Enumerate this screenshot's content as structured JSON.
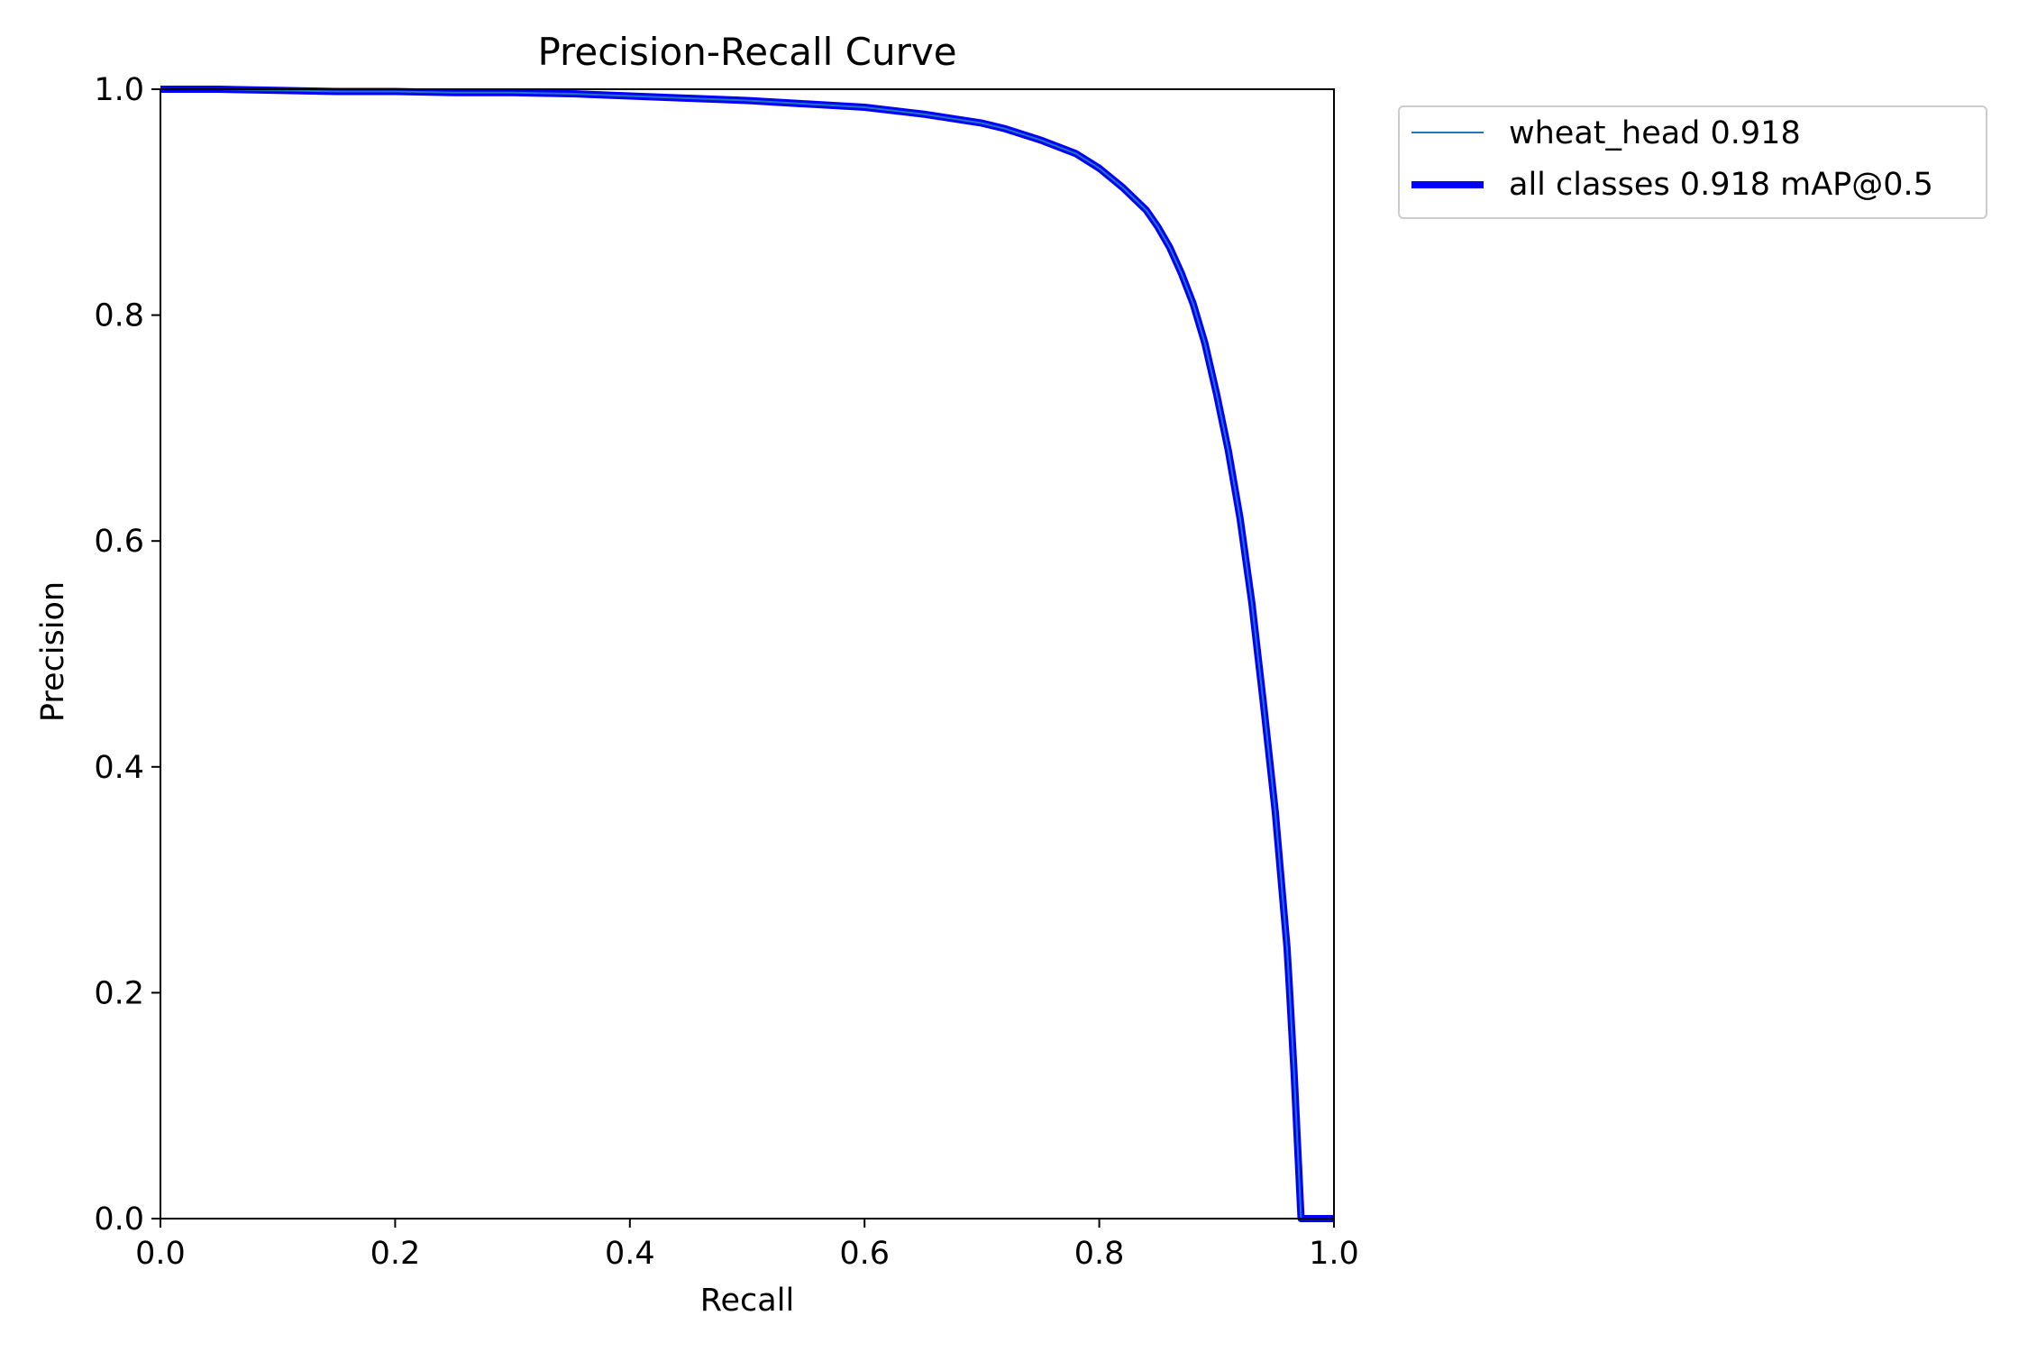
{
  "chart_data": {
    "type": "line",
    "title": "Precision-Recall Curve",
    "xlabel": "Recall",
    "ylabel": "Precision",
    "xlim": [
      0,
      1
    ],
    "ylim": [
      0,
      1
    ],
    "xticks": [
      "0.0",
      "0.2",
      "0.4",
      "0.6",
      "0.8",
      "1.0"
    ],
    "yticks": [
      "0.0",
      "0.2",
      "0.4",
      "0.6",
      "0.8",
      "1.0"
    ],
    "grid": false,
    "legend_position": "outside-top-right",
    "series": [
      {
        "name": "wheat_head 0.918",
        "color": "#1f77b4",
        "line": "thin",
        "x": [
          0.0,
          0.05,
          0.1,
          0.15,
          0.2,
          0.25,
          0.3,
          0.35,
          0.4,
          0.45,
          0.5,
          0.55,
          0.6,
          0.65,
          0.7,
          0.72,
          0.75,
          0.78,
          0.8,
          0.82,
          0.84,
          0.85,
          0.86,
          0.87,
          0.88,
          0.89,
          0.9,
          0.91,
          0.92,
          0.93,
          0.94,
          0.95,
          0.96,
          0.962,
          0.966,
          0.972,
          0.972,
          0.98,
          1.0
        ],
        "y": [
          1.0,
          1.0,
          0.999,
          0.998,
          0.998,
          0.997,
          0.997,
          0.996,
          0.994,
          0.992,
          0.99,
          0.987,
          0.984,
          0.978,
          0.97,
          0.965,
          0.955,
          0.943,
          0.93,
          0.913,
          0.893,
          0.878,
          0.86,
          0.837,
          0.81,
          0.775,
          0.73,
          0.68,
          0.62,
          0.545,
          0.455,
          0.36,
          0.24,
          0.205,
          0.13,
          0.0,
          0.0,
          0.0,
          0.0
        ]
      },
      {
        "name": "all classes 0.918 mAP@0.5",
        "color": "#0000ff",
        "line": "thick",
        "x": [
          0.0,
          0.05,
          0.1,
          0.15,
          0.2,
          0.25,
          0.3,
          0.35,
          0.4,
          0.45,
          0.5,
          0.55,
          0.6,
          0.65,
          0.7,
          0.72,
          0.75,
          0.78,
          0.8,
          0.82,
          0.84,
          0.85,
          0.86,
          0.87,
          0.88,
          0.89,
          0.9,
          0.91,
          0.92,
          0.93,
          0.94,
          0.95,
          0.96,
          0.962,
          0.966,
          0.972,
          0.972,
          0.98,
          1.0
        ],
        "y": [
          1.0,
          1.0,
          0.999,
          0.998,
          0.998,
          0.997,
          0.997,
          0.996,
          0.994,
          0.992,
          0.99,
          0.987,
          0.984,
          0.978,
          0.97,
          0.965,
          0.955,
          0.943,
          0.93,
          0.913,
          0.893,
          0.878,
          0.86,
          0.837,
          0.81,
          0.775,
          0.73,
          0.68,
          0.62,
          0.545,
          0.455,
          0.36,
          0.24,
          0.205,
          0.13,
          0.0,
          0.0,
          0.0,
          0.0
        ]
      }
    ]
  }
}
